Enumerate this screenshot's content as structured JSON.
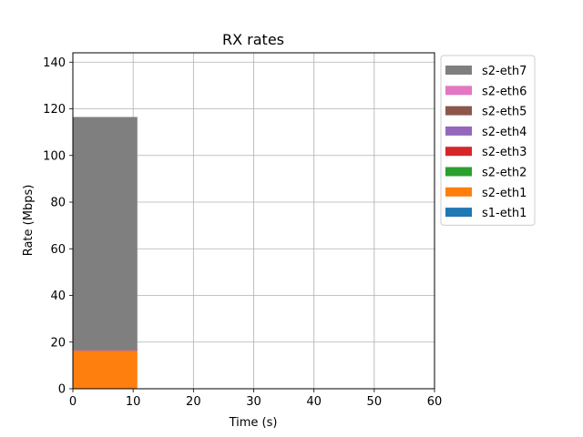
{
  "chart_data": {
    "type": "area",
    "title": "RX rates",
    "xlabel": "Time (s)",
    "ylabel": "Rate (Mbps)",
    "xlim": [
      0,
      60
    ],
    "ylim": [
      0,
      144
    ],
    "xticks": [
      0,
      10,
      20,
      30,
      40,
      50,
      60
    ],
    "yticks": [
      0,
      20,
      40,
      60,
      80,
      100,
      120,
      140
    ],
    "grid": true,
    "stacked": true,
    "legend_position": "outside-right",
    "series": [
      {
        "name": "s1-eth1",
        "color": "#1f77b4",
        "x": [
          0,
          10.7
        ],
        "values": [
          0,
          0
        ]
      },
      {
        "name": "s2-eth1",
        "color": "#ff7f0e",
        "x": [
          0,
          10.7
        ],
        "values": [
          16.5,
          16.5
        ]
      },
      {
        "name": "s2-eth2",
        "color": "#2ca02c",
        "x": [
          0,
          10.7
        ],
        "values": [
          0,
          0
        ]
      },
      {
        "name": "s2-eth3",
        "color": "#d62728",
        "x": [
          0,
          10.7
        ],
        "values": [
          0,
          0
        ]
      },
      {
        "name": "s2-eth4",
        "color": "#9467bd",
        "x": [
          0,
          10.7
        ],
        "values": [
          0,
          0
        ]
      },
      {
        "name": "s2-eth5",
        "color": "#8c564b",
        "x": [
          0,
          10.7
        ],
        "values": [
          0,
          0
        ]
      },
      {
        "name": "s2-eth6",
        "color": "#e377c2",
        "x": [
          0,
          10.7
        ],
        "values": [
          0,
          0
        ]
      },
      {
        "name": "s2-eth7",
        "color": "#7f7f7f",
        "x": [
          0,
          10.7
        ],
        "values": [
          100,
          100
        ]
      }
    ],
    "legend_order": [
      "s2-eth7",
      "s2-eth6",
      "s2-eth5",
      "s2-eth4",
      "s2-eth3",
      "s2-eth2",
      "s2-eth1",
      "s1-eth1"
    ]
  }
}
